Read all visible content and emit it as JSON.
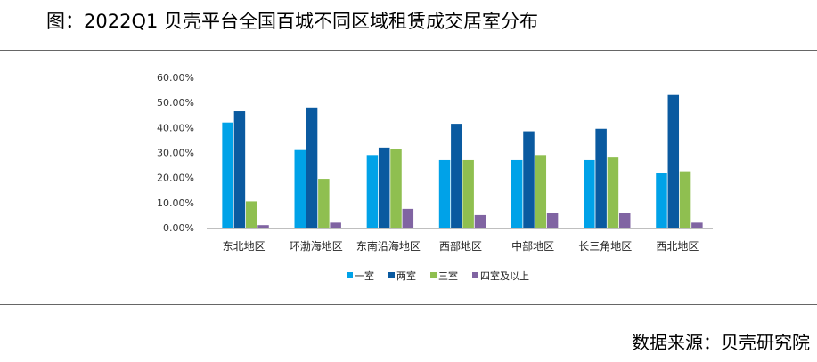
{
  "title": "图：2022Q1 贝壳平台全国百城不同区域租赁成交居室分布",
  "source": "数据来源：贝壳研究院",
  "chart_data": {
    "type": "bar",
    "categories": [
      "东北地区",
      "环渤海地区",
      "东南沿海地区",
      "西部地区",
      "中部地区",
      "长三角地区",
      "西北地区"
    ],
    "series": [
      {
        "name": "一室",
        "color": "#00a2e8",
        "values": [
          42.0,
          31.0,
          29.0,
          27.0,
          27.0,
          27.0,
          22.0
        ]
      },
      {
        "name": "两室",
        "color": "#0a5aa0",
        "values": [
          46.5,
          48.0,
          32.0,
          41.5,
          38.5,
          39.5,
          53.0
        ]
      },
      {
        "name": "三室",
        "color": "#8fbf50",
        "values": [
          10.5,
          19.5,
          31.5,
          27.0,
          29.0,
          28.0,
          22.5
        ]
      },
      {
        "name": "四室及以上",
        "color": "#8064a2",
        "values": [
          1.0,
          2.0,
          7.5,
          5.0,
          6.0,
          6.0,
          2.0
        ]
      }
    ],
    "y_ticks": [
      "0.00%",
      "10.00%",
      "20.00%",
      "30.00%",
      "40.00%",
      "50.00%",
      "60.00%"
    ],
    "ylim": [
      0,
      60
    ],
    "grid": false,
    "legend": "bottom"
  }
}
